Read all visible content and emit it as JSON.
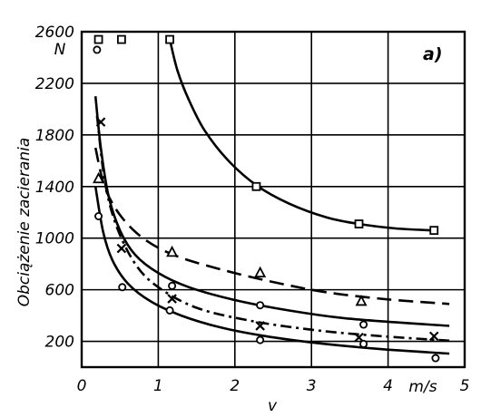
{
  "chart_data": {
    "type": "scatter",
    "title": "",
    "panel_label": "a)",
    "ylabel": "Obciążenie zacierania",
    "y_unit": "N",
    "xlabel": "v",
    "x_unit": "m/s",
    "xlim": [
      0,
      5
    ],
    "ylim": [
      0,
      2600
    ],
    "grid": true,
    "x_ticks": [
      0,
      1,
      2,
      3,
      4,
      5
    ],
    "x_tick_labels": [
      "0",
      "1",
      "2",
      "3",
      "4",
      "5"
    ],
    "y_ticks": [
      200,
      600,
      1000,
      1400,
      1800,
      2200,
      2600
    ],
    "y_tick_labels": [
      "200",
      "600",
      "1000",
      "1400",
      "1800",
      "2200",
      "2600"
    ],
    "series": [
      {
        "marker": "square",
        "line_style": "solid",
        "points": [
          {
            "x": 0.22,
            "y": 2540
          },
          {
            "x": 0.52,
            "y": 2540
          },
          {
            "x": 1.15,
            "y": 2540
          },
          {
            "x": 2.28,
            "y": 1400
          },
          {
            "x": 3.62,
            "y": 1110
          },
          {
            "x": 4.6,
            "y": 1060
          }
        ],
        "curve": [
          {
            "x": 1.15,
            "y": 2540
          },
          {
            "x": 1.25,
            "y": 2300
          },
          {
            "x": 1.4,
            "y": 2070
          },
          {
            "x": 1.6,
            "y": 1840
          },
          {
            "x": 1.9,
            "y": 1610
          },
          {
            "x": 2.28,
            "y": 1410
          },
          {
            "x": 2.7,
            "y": 1270
          },
          {
            "x": 3.2,
            "y": 1160
          },
          {
            "x": 3.62,
            "y": 1110
          },
          {
            "x": 4.1,
            "y": 1075
          },
          {
            "x": 4.6,
            "y": 1060
          }
        ]
      },
      {
        "marker": "triangle",
        "line_style": "dashed",
        "points": [
          {
            "x": 0.22,
            "y": 1460
          },
          {
            "x": 1.18,
            "y": 890
          },
          {
            "x": 2.33,
            "y": 730
          },
          {
            "x": 3.65,
            "y": 510
          }
        ],
        "curve": [
          {
            "x": 0.18,
            "y": 1700
          },
          {
            "x": 0.3,
            "y": 1400
          },
          {
            "x": 0.5,
            "y": 1180
          },
          {
            "x": 0.8,
            "y": 1000
          },
          {
            "x": 1.2,
            "y": 870
          },
          {
            "x": 1.8,
            "y": 760
          },
          {
            "x": 2.5,
            "y": 660
          },
          {
            "x": 3.2,
            "y": 580
          },
          {
            "x": 4.0,
            "y": 525
          },
          {
            "x": 4.8,
            "y": 490
          }
        ]
      },
      {
        "marker": "circle",
        "line_style": "solid",
        "points": [
          {
            "x": 0.2,
            "y": 2460
          },
          {
            "x": 0.53,
            "y": 620
          },
          {
            "x": 1.18,
            "y": 630
          },
          {
            "x": 2.33,
            "y": 480
          },
          {
            "x": 3.68,
            "y": 330
          }
        ],
        "curve": [
          {
            "x": 0.18,
            "y": 2100
          },
          {
            "x": 0.25,
            "y": 1700
          },
          {
            "x": 0.35,
            "y": 1330
          },
          {
            "x": 0.5,
            "y": 1060
          },
          {
            "x": 0.7,
            "y": 870
          },
          {
            "x": 1.0,
            "y": 730
          },
          {
            "x": 1.4,
            "y": 620
          },
          {
            "x": 2.0,
            "y": 520
          },
          {
            "x": 2.7,
            "y": 440
          },
          {
            "x": 3.5,
            "y": 375
          },
          {
            "x": 4.8,
            "y": 320
          }
        ]
      },
      {
        "marker": "x",
        "line_style": "dash-dot",
        "points": [
          {
            "x": 0.25,
            "y": 1900
          },
          {
            "x": 0.52,
            "y": 920
          },
          {
            "x": 1.18,
            "y": 530
          },
          {
            "x": 2.33,
            "y": 320
          },
          {
            "x": 3.62,
            "y": 230
          },
          {
            "x": 4.6,
            "y": 240
          }
        ],
        "curve": [
          {
            "x": 0.2,
            "y": 1950
          },
          {
            "x": 0.3,
            "y": 1450
          },
          {
            "x": 0.45,
            "y": 1100
          },
          {
            "x": 0.7,
            "y": 800
          },
          {
            "x": 1.0,
            "y": 620
          },
          {
            "x": 1.5,
            "y": 460
          },
          {
            "x": 2.2,
            "y": 360
          },
          {
            "x": 3.0,
            "y": 290
          },
          {
            "x": 3.8,
            "y": 245
          },
          {
            "x": 4.8,
            "y": 205
          }
        ]
      },
      {
        "marker": "circle",
        "line_style": "solid",
        "points": [
          {
            "x": 0.22,
            "y": 1170
          },
          {
            "x": 1.15,
            "y": 440
          },
          {
            "x": 2.33,
            "y": 210
          },
          {
            "x": 3.68,
            "y": 180
          },
          {
            "x": 4.62,
            "y": 70
          }
        ],
        "curve": [
          {
            "x": 0.18,
            "y": 1400
          },
          {
            "x": 0.28,
            "y": 1050
          },
          {
            "x": 0.4,
            "y": 830
          },
          {
            "x": 0.6,
            "y": 650
          },
          {
            "x": 0.9,
            "y": 510
          },
          {
            "x": 1.3,
            "y": 400
          },
          {
            "x": 1.8,
            "y": 310
          },
          {
            "x": 2.4,
            "y": 240
          },
          {
            "x": 3.1,
            "y": 185
          },
          {
            "x": 3.9,
            "y": 140
          },
          {
            "x": 4.8,
            "y": 105
          }
        ]
      }
    ]
  }
}
